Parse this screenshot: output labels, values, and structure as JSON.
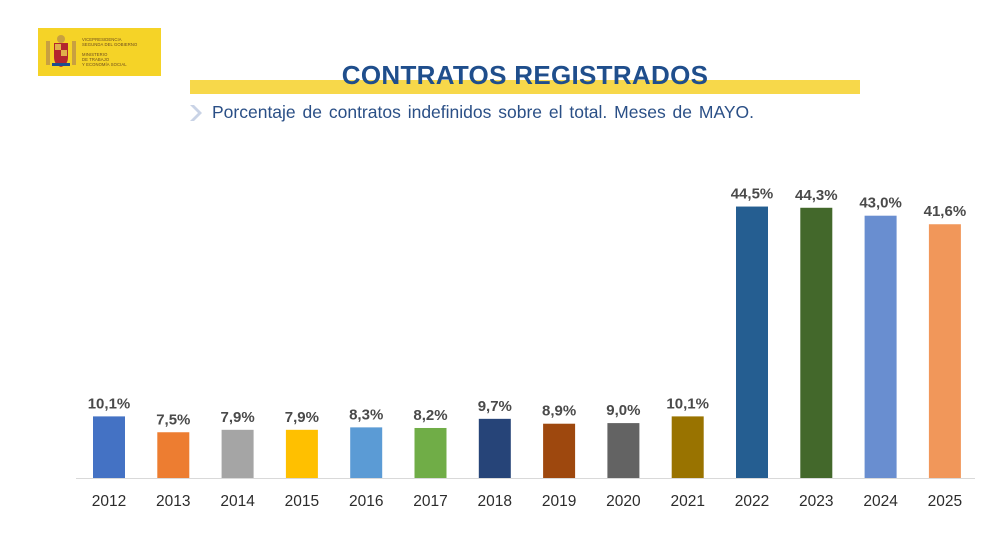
{
  "header": {
    "logo_lines": [
      "Vicepresidencia",
      "Segunda del Gobierno",
      "Ministerio",
      "de Trabajo",
      "y Economía Social"
    ],
    "title": "CONTRATOS REGISTRADOS",
    "subtitle": "Porcentaje de contratos indefinidos sobre el total. Meses de MAYO."
  },
  "chart_data": {
    "type": "bar",
    "title": "CONTRATOS REGISTRADOS",
    "subtitle": "Porcentaje de contratos indefinidos sobre el total. Meses de MAYO.",
    "xlabel": "",
    "ylabel": "",
    "ylim": [
      0,
      50
    ],
    "grid": false,
    "categories": [
      "2012",
      "2013",
      "2014",
      "2015",
      "2016",
      "2017",
      "2018",
      "2019",
      "2020",
      "2021",
      "2022",
      "2023",
      "2024",
      "2025"
    ],
    "values": [
      10.1,
      7.5,
      7.9,
      7.9,
      8.3,
      8.2,
      9.7,
      8.9,
      9.0,
      10.1,
      44.5,
      44.3,
      43.0,
      41.6
    ],
    "value_labels": [
      "10,1%",
      "7,5%",
      "7,9%",
      "7,9%",
      "8,3%",
      "8,2%",
      "9,7%",
      "8,9%",
      "9,0%",
      "10,1%",
      "44,5%",
      "44,3%",
      "43,0%",
      "41,6%"
    ],
    "colors": [
      "#4472c4",
      "#ed7d31",
      "#a5a5a5",
      "#ffc000",
      "#5b9bd5",
      "#70ad47",
      "#264478",
      "#9e480e",
      "#636363",
      "#997300",
      "#255e91",
      "#43682b",
      "#698ed0",
      "#f1975a"
    ]
  }
}
